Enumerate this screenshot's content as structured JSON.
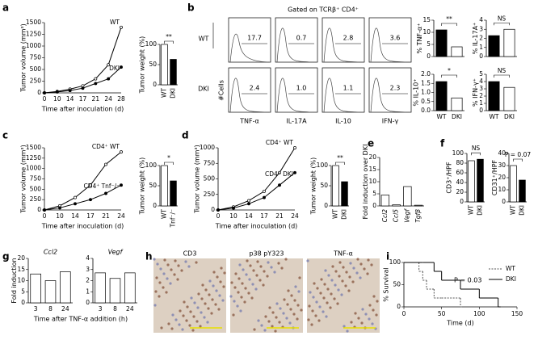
{
  "panels": [
    "a",
    "b",
    "c",
    "d",
    "e",
    "f",
    "g",
    "h",
    "i"
  ],
  "flow": {
    "gate": "Gated on TCRβ⁺ CD4⁺",
    "rows": [
      "WT",
      "DKI"
    ],
    "y_label": "#Cells",
    "markers": [
      "TNF-α",
      "IL-17A",
      "IL-10",
      "IFN-γ"
    ],
    "percents": [
      [
        "17.7",
        "0.7",
        "2.8",
        "3.6"
      ],
      [
        "2.4",
        "1.0",
        "1.1",
        "2.3"
      ]
    ]
  },
  "histology": {
    "stains": [
      "CD3",
      "p38 pY323",
      "TNF-α"
    ]
  },
  "chart_data": [
    {
      "type": "line",
      "ylabel": "Tumor volume (mm³)",
      "xlabel": "Time after inoculation (d)",
      "categories": [
        "0",
        "10",
        "14",
        "17",
        "21",
        "24",
        "28"
      ],
      "ylim": [
        0,
        1500
      ],
      "yticks": [
        0,
        250,
        500,
        750,
        1000,
        1250,
        1500
      ],
      "series": [
        {
          "name": "WT",
          "color": "#000000",
          "values": [
            0,
            30,
            80,
            150,
            300,
            600,
            1400
          ]
        },
        {
          "name": "DKI",
          "color": "#000000",
          "values": [
            0,
            20,
            50,
            100,
            200,
            300,
            550
          ]
        }
      ]
    },
    {
      "type": "bar",
      "ylabel": "Tumor weight (%)",
      "categories": [
        "WT",
        "DKI"
      ],
      "values": [
        100,
        63
      ],
      "colors": [
        "#ffffff",
        "#000000"
      ],
      "ylim": [
        0,
        100
      ],
      "yticks": [
        0,
        50,
        100
      ],
      "sig": "**"
    },
    {
      "type": "bar",
      "ylabel": "% TNF-α⁺",
      "categories": [
        null,
        null
      ],
      "values": [
        11,
        4
      ],
      "colors": [
        "#000000",
        "#ffffff"
      ],
      "ylim": [
        0,
        15
      ],
      "yticks": [
        0,
        5,
        10,
        15
      ],
      "sig": "**"
    },
    {
      "type": "bar",
      "ylabel": "% IL-17A⁺",
      "categories": [
        null,
        null
      ],
      "values": [
        2.3,
        3
      ],
      "colors": [
        "#000000",
        "#ffffff"
      ],
      "ylim": [
        0,
        4
      ],
      "yticks": [
        0,
        1,
        2,
        3,
        4
      ],
      "sig": "NS"
    },
    {
      "type": "bar",
      "ylabel": "% IL-10⁺",
      "categories": [
        "WT",
        "DKI"
      ],
      "values": [
        1.6,
        0.7
      ],
      "colors": [
        "#000000",
        "#ffffff"
      ],
      "ylim": [
        0,
        2
      ],
      "yticks": [
        {
          "value": 0,
          "label": "0.0"
        },
        {
          "value": 0.5,
          "label": "0.5"
        },
        {
          "value": 1,
          "label": "1.0"
        },
        {
          "value": 1.5,
          "label": "1.5"
        },
        {
          "value": 2,
          "label": "2.0"
        }
      ],
      "sig": "*"
    },
    {
      "type": "bar",
      "ylabel": "% IFN-γ⁺",
      "categories": [
        "WT",
        "DKI"
      ],
      "values": [
        4,
        3.2
      ],
      "colors": [
        "#000000",
        "#ffffff"
      ],
      "ylim": [
        0,
        5
      ],
      "yticks": [
        0,
        1,
        2,
        3,
        4,
        5
      ],
      "sig": "NS"
    },
    {
      "type": "line",
      "ylabel": "Tumor volume (mm³)",
      "xlabel": "Time after inoculation (d)",
      "categories": [
        "0",
        "10",
        "14",
        "17",
        "21",
        "24"
      ],
      "ylim": [
        0,
        1500
      ],
      "yticks": [
        0,
        250,
        500,
        750,
        1000,
        1250,
        1500
      ],
      "series": [
        {
          "name": "CD4⁺ WT",
          "color": "#000000",
          "values": [
            0,
            100,
            300,
            600,
            1100,
            1400
          ]
        },
        {
          "name": "CD4⁺ Tnf⁻/⁻",
          "color": "#000000",
          "values": [
            0,
            50,
            150,
            250,
            400,
            600
          ]
        }
      ]
    },
    {
      "type": "bar",
      "ylabel": "Tumor weight (%)",
      "categories": [
        "WT",
        "Tnf⁻/⁻"
      ],
      "values": [
        100,
        62
      ],
      "colors": [
        "#ffffff",
        "#000000"
      ],
      "ylim": [
        0,
        100
      ],
      "yticks": [
        0,
        50,
        100
      ],
      "sig": "*"
    },
    {
      "type": "line",
      "ylabel": "Tumor volume (mm³)",
      "xlabel": "Time after inoculation (d)",
      "categories": [
        "0",
        "10",
        "14",
        "17",
        "21",
        "24"
      ],
      "ylim": [
        0,
        1000
      ],
      "yticks": [
        0,
        250,
        500,
        750,
        1000
      ],
      "series": [
        {
          "name": "CD4⁺ WT",
          "color": "#000000",
          "values": [
            0,
            50,
            150,
            300,
            600,
            1000
          ]
        },
        {
          "name": "CD4⁺ DKI",
          "color": "#000000",
          "values": [
            0,
            30,
            100,
            200,
            400,
            600
          ]
        }
      ]
    },
    {
      "type": "bar",
      "ylabel": "Tumor weight (%)",
      "categories": [
        "WT",
        "DKI"
      ],
      "values": [
        100,
        60
      ],
      "colors": [
        "#ffffff",
        "#000000"
      ],
      "ylim": [
        0,
        100
      ],
      "yticks": [
        0,
        50,
        100
      ],
      "sig": "**"
    },
    {
      "type": "bar",
      "ylabel": "Fold induction over DKI",
      "categories": [
        "Ccl2",
        "Ccl5",
        "Vegf",
        "Tgfβ"
      ],
      "values": [
        4.5,
        0.5,
        8,
        0.3
      ],
      "color": "#ffffff",
      "ylim": [
        0,
        20
      ],
      "yticks": [
        0,
        5,
        10,
        15,
        20
      ]
    },
    {
      "type": "bar",
      "ylabel": "CD3⁺/HPF",
      "categories": [
        "WT",
        "DKI"
      ],
      "values": [
        85,
        88
      ],
      "colors": [
        "#ffffff",
        "#000000"
      ],
      "ylim": [
        0,
        100
      ],
      "yticks": [
        0,
        20,
        40,
        60,
        80,
        100
      ],
      "sig": "NS"
    },
    {
      "type": "bar",
      "ylabel": "CD31⁺/HPF",
      "categories": [
        "WT",
        "DKI"
      ],
      "values": [
        30,
        18
      ],
      "colors": [
        "#ffffff",
        "#000000"
      ],
      "ylim": [
        0,
        40
      ],
      "yticks": [
        0,
        10,
        20,
        30,
        40
      ],
      "sig": "P = 0.07"
    },
    {
      "type": "bar",
      "title": "Ccl2",
      "ylabel": "Fold induction",
      "xlabel": "Time after TNF-α addition (h)",
      "categories": [
        "3",
        "8",
        "24"
      ],
      "values": [
        13,
        10,
        14
      ],
      "color": "#ffffff",
      "ylim": [
        0,
        20
      ],
      "yticks": [
        0,
        5,
        10,
        15,
        20
      ]
    },
    {
      "type": "bar",
      "title": "Vegf",
      "categories": [
        "3",
        "8",
        "24"
      ],
      "values": [
        2.7,
        2.2,
        2.7
      ],
      "color": "#ffffff",
      "ylim": [
        0,
        4
      ],
      "yticks": [
        0,
        1,
        2,
        3,
        4
      ]
    },
    {
      "type": "step",
      "ylabel": "% Survival",
      "xlabel": "Time (d)",
      "annotation": "P = 0.03",
      "xlim": [
        0,
        150
      ],
      "xticks": [
        0,
        50,
        100,
        150
      ],
      "ylim": [
        0,
        100
      ],
      "yticks": [
        0,
        50,
        100
      ],
      "series": [
        {
          "name": "WT",
          "color": "#555555",
          "dash": true,
          "x": [
            0,
            10,
            20,
            25,
            30,
            40,
            50,
            75
          ],
          "values": [
            100,
            100,
            80,
            60,
            40,
            20,
            20,
            0
          ]
        },
        {
          "name": "DKI",
          "color": "#000000",
          "dash": false,
          "x": [
            0,
            25,
            40,
            50,
            75,
            100,
            125
          ],
          "values": [
            100,
            100,
            80,
            60,
            40,
            20,
            0
          ]
        }
      ]
    }
  ]
}
